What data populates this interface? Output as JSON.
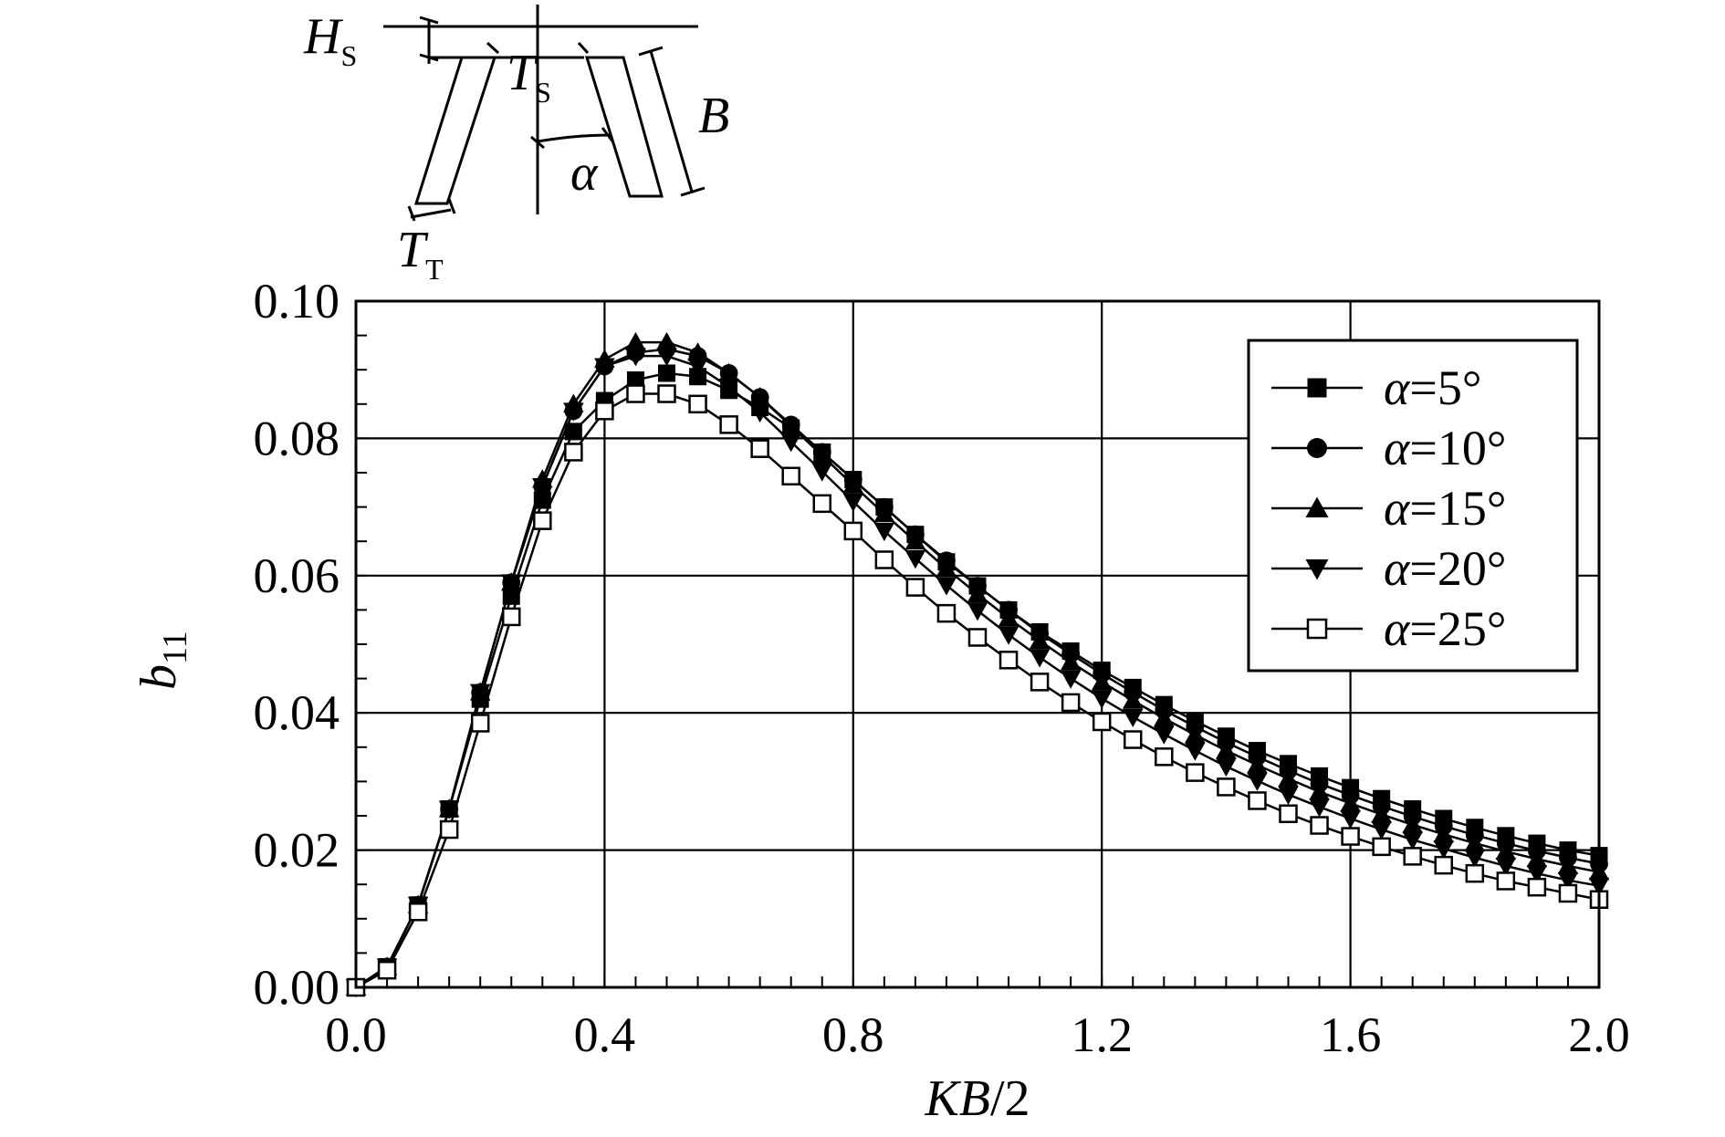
{
  "chart_data": {
    "type": "line",
    "xlabel": {
      "main": "KB",
      "rest": "/2"
    },
    "ylabel": {
      "main": "b",
      "sub": "11"
    },
    "xlim": [
      0,
      2.0
    ],
    "ylim": [
      0,
      0.1
    ],
    "xticks": [
      "0.0",
      "0.4",
      "0.8",
      "1.2",
      "1.6",
      "2.0"
    ],
    "xtick_values": [
      0,
      0.4,
      0.8,
      1.2,
      1.6,
      2.0
    ],
    "yticks": [
      "0.00",
      "0.02",
      "0.04",
      "0.06",
      "0.08",
      "0.10"
    ],
    "ytick_values": [
      0,
      0.02,
      0.04,
      0.06,
      0.08,
      0.1
    ],
    "grid": true,
    "legend_position": "top-right",
    "x": [
      0.0,
      0.05,
      0.1,
      0.15,
      0.2,
      0.25,
      0.3,
      0.35,
      0.4,
      0.45,
      0.5,
      0.55,
      0.6,
      0.65,
      0.7,
      0.75,
      0.8,
      0.85,
      0.9,
      0.95,
      1.0,
      1.05,
      1.1,
      1.15,
      1.2,
      1.25,
      1.3,
      1.35,
      1.4,
      1.45,
      1.5,
      1.55,
      1.6,
      1.65,
      1.7,
      1.75,
      1.8,
      1.85,
      1.9,
      1.95,
      2.0
    ],
    "series": [
      {
        "name": "α=5°",
        "alpha": "α",
        "rest": "=5°",
        "marker": "square-filled",
        "values": [
          0.0,
          0.003,
          0.012,
          0.026,
          0.042,
          0.057,
          0.071,
          0.081,
          0.0855,
          0.0885,
          0.0895,
          0.089,
          0.087,
          0.0845,
          0.0815,
          0.078,
          0.074,
          0.07,
          0.066,
          0.062,
          0.0585,
          0.055,
          0.0518,
          0.049,
          0.0462,
          0.0437,
          0.0412,
          0.0388,
          0.0366,
          0.0345,
          0.0326,
          0.0308,
          0.0291,
          0.0275,
          0.026,
          0.0246,
          0.0233,
          0.0221,
          0.021,
          0.02,
          0.0192
        ]
      },
      {
        "name": "α=10°",
        "alpha": "α",
        "rest": "=10°",
        "marker": "circle-filled",
        "values": [
          0.0,
          0.003,
          0.012,
          0.026,
          0.043,
          0.059,
          0.073,
          0.084,
          0.0905,
          0.0925,
          0.093,
          0.092,
          0.0895,
          0.086,
          0.082,
          0.078,
          0.074,
          0.07,
          0.066,
          0.0622,
          0.0585,
          0.055,
          0.0516,
          0.0486,
          0.0457,
          0.043,
          0.0404,
          0.038,
          0.0357,
          0.0336,
          0.0316,
          0.0297,
          0.028,
          0.0264,
          0.0249,
          0.0235,
          0.0222,
          0.021,
          0.0199,
          0.0189,
          0.018
        ]
      },
      {
        "name": "α=15°",
        "alpha": "α",
        "rest": "=15°",
        "marker": "triangle-up-filled",
        "values": [
          0.0,
          0.003,
          0.012,
          0.026,
          0.043,
          0.059,
          0.074,
          0.085,
          0.0915,
          0.094,
          0.094,
          0.0925,
          0.0895,
          0.086,
          0.0818,
          0.0775,
          0.0732,
          0.069,
          0.065,
          0.061,
          0.0573,
          0.0538,
          0.0505,
          0.0474,
          0.0445,
          0.0418,
          0.0392,
          0.0368,
          0.0345,
          0.0324,
          0.0304,
          0.0285,
          0.0268,
          0.0252,
          0.0237,
          0.0223,
          0.021,
          0.0198,
          0.0187,
          0.0177,
          0.0168
        ]
      },
      {
        "name": "α=20°",
        "alpha": "α",
        "rest": "=20°",
        "marker": "triangle-down-filled",
        "values": [
          0.0,
          0.003,
          0.012,
          0.026,
          0.043,
          0.059,
          0.073,
          0.084,
          0.0905,
          0.092,
          0.092,
          0.0905,
          0.0875,
          0.0838,
          0.0795,
          0.0752,
          0.0708,
          0.0665,
          0.0625,
          0.0586,
          0.0549,
          0.0514,
          0.0481,
          0.045,
          0.0421,
          0.0394,
          0.0369,
          0.0345,
          0.0322,
          0.0301,
          0.0281,
          0.0263,
          0.0246,
          0.023,
          0.0215,
          0.0202,
          0.0189,
          0.0177,
          0.0166,
          0.0156,
          0.0148
        ]
      },
      {
        "name": "α=25°",
        "alpha": "α",
        "rest": "=25°",
        "marker": "square-open",
        "values": [
          0.0,
          0.0025,
          0.011,
          0.023,
          0.0385,
          0.054,
          0.068,
          0.078,
          0.084,
          0.0865,
          0.0865,
          0.085,
          0.082,
          0.0785,
          0.0745,
          0.0705,
          0.0665,
          0.0623,
          0.0583,
          0.0545,
          0.051,
          0.0477,
          0.0445,
          0.0415,
          0.0387,
          0.0361,
          0.0336,
          0.0313,
          0.0292,
          0.0272,
          0.0253,
          0.0236,
          0.022,
          0.0205,
          0.0191,
          0.0178,
          0.0166,
          0.0155,
          0.0146,
          0.0137,
          0.0128
        ]
      }
    ]
  },
  "inset": {
    "labels": {
      "hs": {
        "main": "H",
        "sub": "S"
      },
      "ts": {
        "main": "T",
        "sub": "S"
      },
      "tt": {
        "main": "T",
        "sub": "T"
      },
      "b": "B",
      "alpha": "α"
    }
  }
}
